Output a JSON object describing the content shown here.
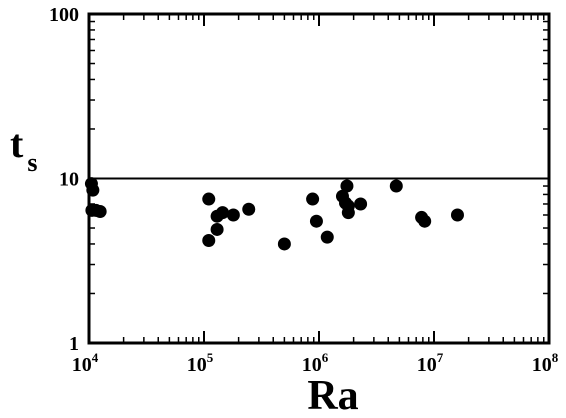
{
  "chart_data": {
    "type": "scatter",
    "xlabel": "Ra",
    "ylabel": {
      "base": "t",
      "subscript": "s"
    },
    "x_scale": "log",
    "y_scale": "log",
    "xlim": [
      10000,
      100000000
    ],
    "ylim": [
      1,
      100
    ],
    "x_ticks": [
      {
        "value": 10000,
        "base": "10",
        "exp": "4"
      },
      {
        "value": 100000,
        "base": "10",
        "exp": "5"
      },
      {
        "value": 1000000,
        "base": "10",
        "exp": "6"
      },
      {
        "value": 10000000,
        "base": "10",
        "exp": "7"
      },
      {
        "value": 100000000,
        "base": "10",
        "exp": "8"
      }
    ],
    "y_ticks": [
      {
        "value": 1,
        "label": "1"
      },
      {
        "value": 10,
        "label": "10"
      },
      {
        "value": 100,
        "label": "100"
      }
    ],
    "grid": false,
    "reference_line": {
      "y": 10
    },
    "points": [
      {
        "x": 10500,
        "y": 9.3
      },
      {
        "x": 10800,
        "y": 8.5
      },
      {
        "x": 10600,
        "y": 6.4
      },
      {
        "x": 11500,
        "y": 6.4
      },
      {
        "x": 12500,
        "y": 6.3
      },
      {
        "x": 110000,
        "y": 7.5
      },
      {
        "x": 110000,
        "y": 4.2
      },
      {
        "x": 130000,
        "y": 5.9
      },
      {
        "x": 130000,
        "y": 4.9
      },
      {
        "x": 145000,
        "y": 6.2
      },
      {
        "x": 180000,
        "y": 6.0
      },
      {
        "x": 245000,
        "y": 6.5
      },
      {
        "x": 500000,
        "y": 4.0
      },
      {
        "x": 880000,
        "y": 7.5
      },
      {
        "x": 950000,
        "y": 5.5
      },
      {
        "x": 1180000,
        "y": 4.4
      },
      {
        "x": 1600000,
        "y": 7.8
      },
      {
        "x": 1700000,
        "y": 7.1
      },
      {
        "x": 1750000,
        "y": 9.0
      },
      {
        "x": 1800000,
        "y": 6.8
      },
      {
        "x": 1800000,
        "y": 6.2
      },
      {
        "x": 2300000,
        "y": 7.0
      },
      {
        "x": 4700000,
        "y": 9.0
      },
      {
        "x": 7800000,
        "y": 5.8
      },
      {
        "x": 8300000,
        "y": 5.5
      },
      {
        "x": 16000000,
        "y": 6.0
      }
    ]
  }
}
